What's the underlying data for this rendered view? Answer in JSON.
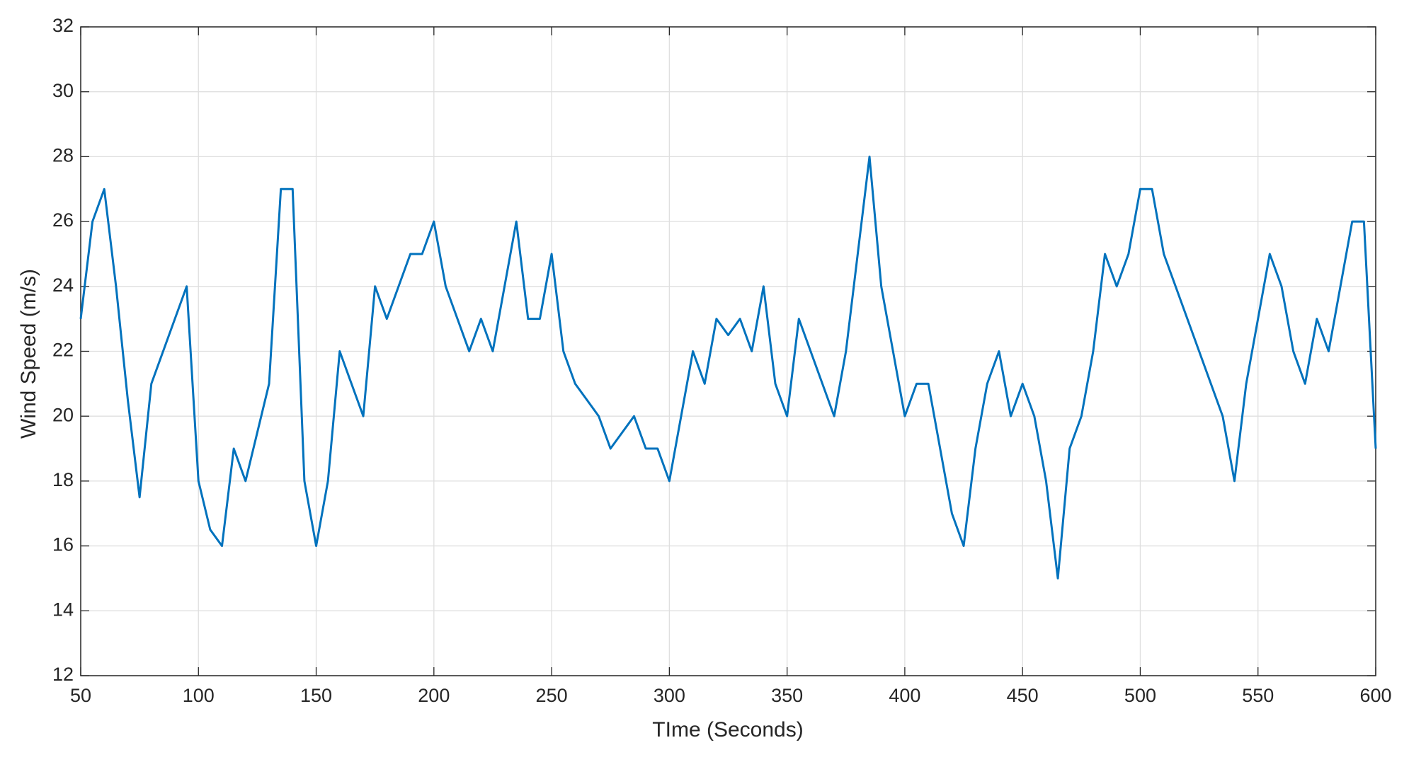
{
  "chart_data": {
    "type": "line",
    "xlabel": "TIme (Seconds)",
    "ylabel": "Wind Speed (m/s)",
    "x": [
      50,
      55,
      60,
      65,
      70,
      75,
      80,
      85,
      90,
      95,
      100,
      105,
      110,
      115,
      120,
      125,
      130,
      135,
      140,
      145,
      150,
      155,
      160,
      165,
      170,
      175,
      180,
      185,
      190,
      195,
      200,
      205,
      210,
      215,
      220,
      225,
      230,
      235,
      240,
      245,
      250,
      255,
      260,
      265,
      270,
      275,
      280,
      285,
      290,
      295,
      300,
      305,
      310,
      315,
      320,
      325,
      330,
      335,
      340,
      345,
      350,
      355,
      360,
      365,
      370,
      375,
      380,
      385,
      390,
      395,
      400,
      405,
      410,
      415,
      420,
      425,
      430,
      435,
      440,
      445,
      450,
      455,
      460,
      465,
      470,
      475,
      480,
      485,
      490,
      495,
      500,
      505,
      510,
      515,
      520,
      525,
      530,
      535,
      540,
      545,
      550,
      555,
      560,
      565,
      570,
      575,
      580,
      585,
      590,
      595,
      600
    ],
    "series": [
      {
        "name": "Wind Speed",
        "color": "#0072bd",
        "values": [
          23,
          26,
          27,
          24,
          20.5,
          17.5,
          21,
          22,
          23,
          24,
          18,
          16.5,
          16,
          19,
          18,
          19.5,
          21,
          27,
          27,
          18,
          16,
          18,
          22,
          21,
          20,
          24,
          23,
          24,
          25,
          25,
          26,
          24,
          23,
          22,
          23,
          22,
          24,
          26,
          23,
          23,
          25,
          22,
          21,
          20.5,
          20,
          19,
          19.5,
          20,
          19,
          19,
          18,
          20,
          22,
          21,
          23,
          22.5,
          23,
          22,
          24,
          21,
          20,
          23,
          22,
          21,
          20,
          22,
          25,
          28,
          24,
          22,
          20,
          21,
          21,
          19,
          17,
          16,
          19,
          21,
          22,
          20,
          21,
          20,
          18,
          15,
          19,
          20,
          22,
          25,
          24,
          25,
          27,
          27,
          25,
          24,
          23,
          22,
          21,
          20,
          18,
          21,
          23,
          25,
          24,
          22,
          21,
          23,
          22,
          24,
          26,
          26,
          19
        ]
      }
    ],
    "xlim": [
      50,
      600
    ],
    "xticks": [
      50,
      100,
      150,
      200,
      250,
      300,
      350,
      400,
      450,
      500,
      550,
      600
    ],
    "ylim": [
      12,
      32
    ],
    "yticks": [
      12,
      14,
      16,
      18,
      20,
      22,
      24,
      26,
      28,
      30,
      32
    ],
    "grid": true
  }
}
